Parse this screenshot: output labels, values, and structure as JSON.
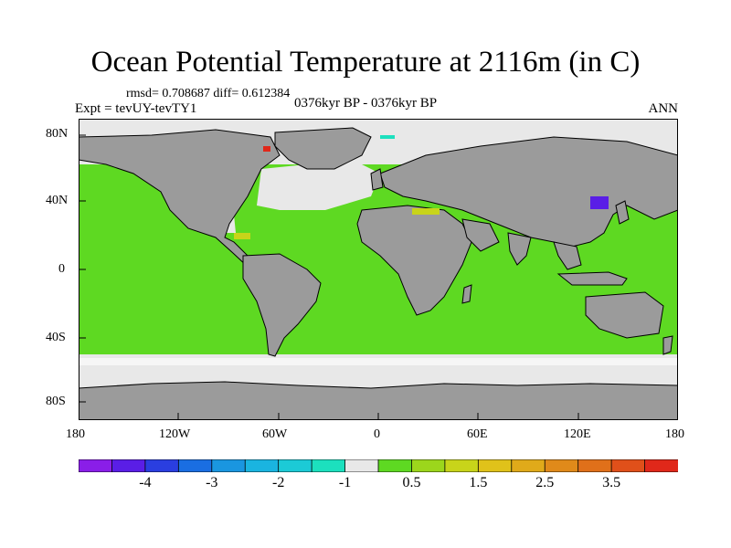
{
  "title": "Ocean Potential Temperature at 2116m (in C)",
  "stats_text": "rmsd= 0.708687  diff= 0.612384",
  "experiment": "Expt = tevUY-tevTY1",
  "period": "0376kyr BP - 0376kyr BP",
  "season": "ANN",
  "lat_ticks": [
    "80N",
    "40N",
    "0",
    "40S",
    "80S"
  ],
  "lon_ticks": [
    "180",
    "120W",
    "60W",
    "0",
    "60E",
    "120E",
    "180"
  ],
  "colors": {
    "land": "#9b9b9b",
    "coast": "#000000",
    "ocean_default": "#5ed922",
    "near_zero": "#e8e8e8"
  },
  "colorbar": {
    "colors": [
      "#8a1ee8",
      "#5a1ee6",
      "#2a3ee0",
      "#1a6ee2",
      "#1a96e0",
      "#1ab4e0",
      "#1ccad6",
      "#1ce0be",
      "#e8e8e8",
      "#5ed922",
      "#9cd61c",
      "#c8d41a",
      "#e0c21a",
      "#e0aa1a",
      "#e08a1a",
      "#e0701a",
      "#e0501a",
      "#e0281a"
    ],
    "labels": [
      {
        "text": "-4",
        "index": 2
      },
      {
        "text": "-3",
        "index": 4
      },
      {
        "text": "-2",
        "index": 6
      },
      {
        "text": "-1",
        "index": 8
      },
      {
        "text": "0.5",
        "index": 10
      },
      {
        "text": "1.5",
        "index": 12
      },
      {
        "text": "2.5",
        "index": 14
      },
      {
        "text": "3.5",
        "index": 16
      }
    ]
  }
}
